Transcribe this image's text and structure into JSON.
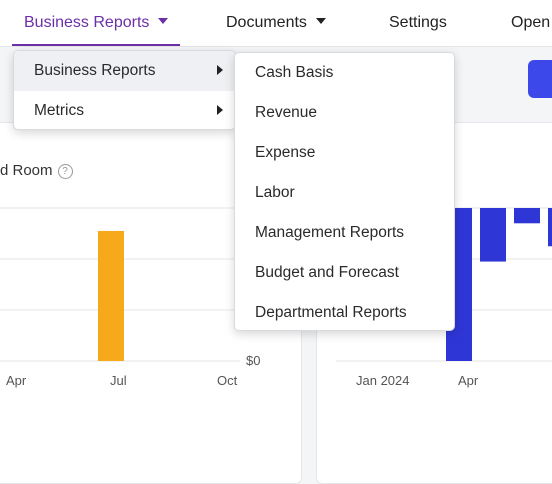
{
  "nav": {
    "items": [
      {
        "label": "Business Reports",
        "active": true,
        "caret": true
      },
      {
        "label": "Documents",
        "active": false,
        "caret": true
      },
      {
        "label": "Settings",
        "active": false,
        "caret": false
      },
      {
        "label": "Open",
        "active": false,
        "caret": false
      }
    ]
  },
  "card_left": {
    "title": "d Room",
    "help_icon": "question-circle-icon"
  },
  "chart_left": {
    "type": "bar",
    "x_ticks": [
      "Apr",
      "Jul",
      "Oct"
    ],
    "y_tick": "$0",
    "bar_color": "#f5a91b",
    "values": [
      {
        "x": "Jul",
        "height_fraction": 0.85
      }
    ]
  },
  "chart_right": {
    "type": "bar",
    "x_ticks": [
      "Jan 2024",
      "Apr"
    ],
    "bar_color": "#2f36d6",
    "bars": [
      {
        "fraction": 1.0
      },
      {
        "fraction": 0.35
      },
      {
        "fraction": 0.1
      },
      {
        "fraction": 0.25
      }
    ]
  },
  "menu_level1": {
    "items": [
      {
        "label": "Business Reports",
        "has_submenu": true,
        "highlighted": true
      },
      {
        "label": "Metrics",
        "has_submenu": true,
        "highlighted": false
      }
    ]
  },
  "menu_level2": {
    "items": [
      {
        "label": "Cash Basis"
      },
      {
        "label": "Revenue"
      },
      {
        "label": "Expense"
      },
      {
        "label": "Labor"
      },
      {
        "label": "Management Reports"
      },
      {
        "label": "Budget and Forecast"
      },
      {
        "label": "Departmental Reports"
      }
    ]
  },
  "colors": {
    "accent": "#6b2fa8",
    "primary_button": "#3d48ea"
  }
}
